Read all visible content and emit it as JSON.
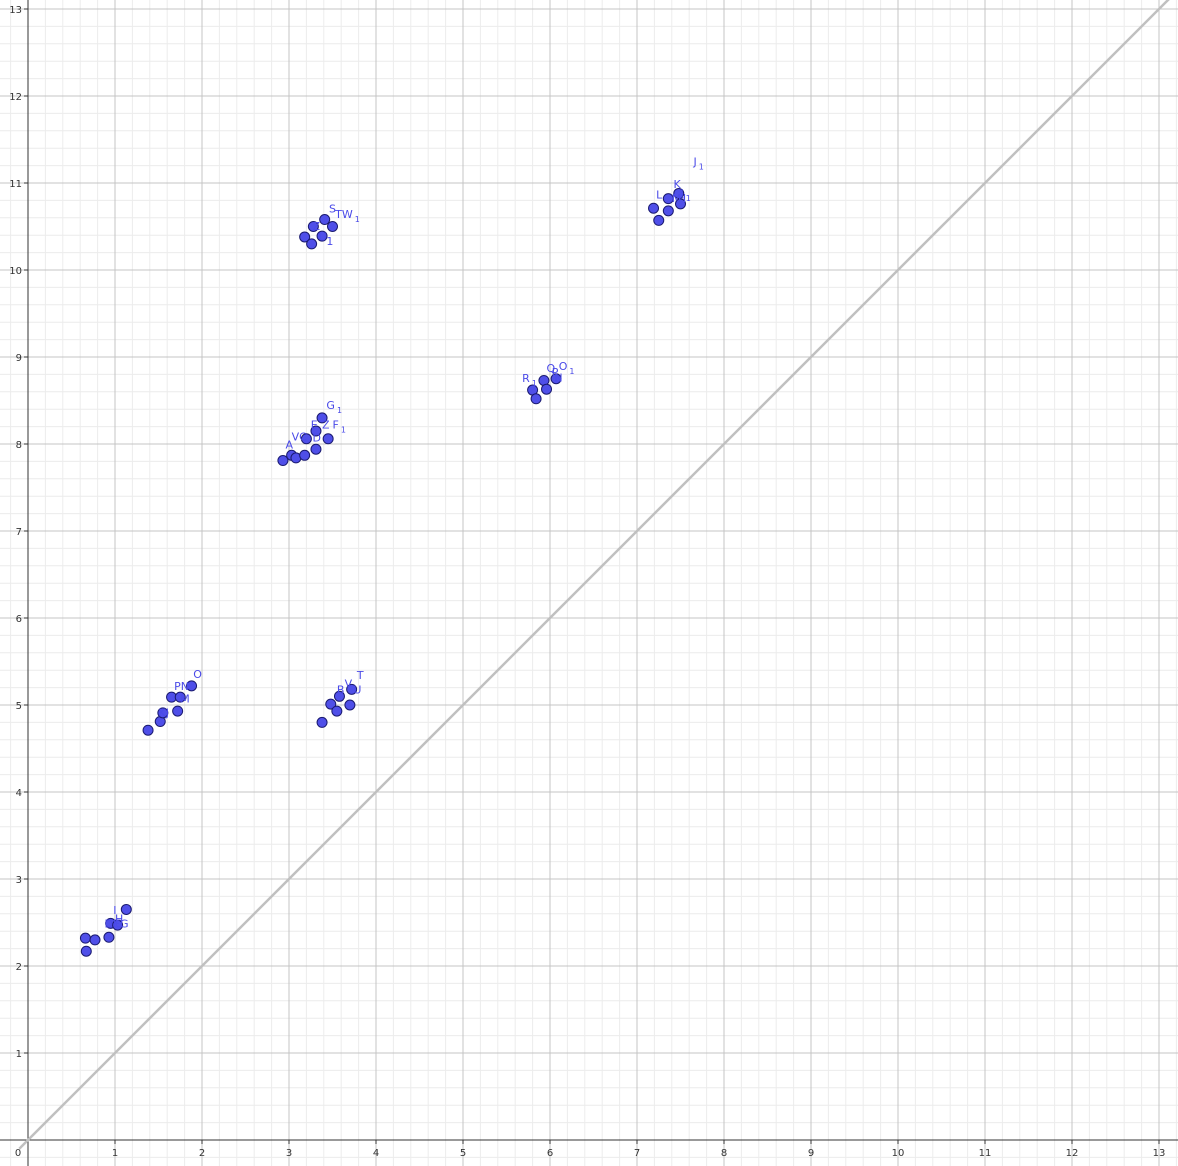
{
  "chart_data": {
    "type": "scatter",
    "title": "",
    "xlabel": "",
    "ylabel": "",
    "xlim": [
      -0.1,
      13.5
    ],
    "ylim": [
      -0.3,
      13.1
    ],
    "x_ticks": [
      "0",
      "1",
      "2",
      "3",
      "4",
      "5",
      "6",
      "7",
      "8",
      "9",
      "10",
      "11",
      "12",
      "13"
    ],
    "y_ticks": [
      "1",
      "2",
      "3",
      "4",
      "5",
      "6",
      "7",
      "8",
      "9",
      "10",
      "11",
      "12",
      "13"
    ],
    "grid": true,
    "reference_line": {
      "from": [
        -0.1,
        -0.1
      ],
      "to": [
        13.2,
        13.2
      ],
      "color": "#c0c0c0"
    },
    "point_color": "#4f4fe8",
    "point_stroke": "#1a1a70",
    "points": [
      {
        "x": 0.66,
        "y": 2.32
      },
      {
        "x": 0.77,
        "y": 2.3
      },
      {
        "x": 0.67,
        "y": 2.17
      },
      {
        "x": 0.93,
        "y": 2.33
      },
      {
        "x": 0.95,
        "y": 2.49
      },
      {
        "x": 1.03,
        "y": 2.47
      },
      {
        "x": 1.13,
        "y": 2.65
      },
      {
        "x": 1.38,
        "y": 4.71
      },
      {
        "x": 1.52,
        "y": 4.81
      },
      {
        "x": 1.55,
        "y": 4.91
      },
      {
        "x": 1.72,
        "y": 4.93
      },
      {
        "x": 1.65,
        "y": 5.09
      },
      {
        "x": 1.75,
        "y": 5.09
      },
      {
        "x": 1.88,
        "y": 5.22
      },
      {
        "x": 3.38,
        "y": 4.8
      },
      {
        "x": 3.48,
        "y": 5.01
      },
      {
        "x": 3.55,
        "y": 4.93
      },
      {
        "x": 3.58,
        "y": 5.1
      },
      {
        "x": 3.7,
        "y": 5.0
      },
      {
        "x": 3.72,
        "y": 5.18
      },
      {
        "x": 2.93,
        "y": 7.81
      },
      {
        "x": 3.03,
        "y": 7.87
      },
      {
        "x": 3.08,
        "y": 7.84
      },
      {
        "x": 3.18,
        "y": 7.87
      },
      {
        "x": 3.31,
        "y": 7.94
      },
      {
        "x": 3.2,
        "y": 8.06
      },
      {
        "x": 3.45,
        "y": 8.06
      },
      {
        "x": 3.31,
        "y": 8.15
      },
      {
        "x": 3.38,
        "y": 8.3
      },
      {
        "x": 3.18,
        "y": 10.38
      },
      {
        "x": 3.26,
        "y": 10.3
      },
      {
        "x": 3.28,
        "y": 10.5
      },
      {
        "x": 3.38,
        "y": 10.39
      },
      {
        "x": 3.41,
        "y": 10.58
      },
      {
        "x": 3.5,
        "y": 10.5
      },
      {
        "x": 5.8,
        "y": 8.62
      },
      {
        "x": 5.84,
        "y": 8.52
      },
      {
        "x": 5.93,
        "y": 8.73
      },
      {
        "x": 5.96,
        "y": 8.63
      },
      {
        "x": 6.07,
        "y": 8.75
      },
      {
        "x": 7.19,
        "y": 10.71
      },
      {
        "x": 7.25,
        "y": 10.57
      },
      {
        "x": 7.36,
        "y": 10.68
      },
      {
        "x": 7.36,
        "y": 10.82
      },
      {
        "x": 7.5,
        "y": 10.76
      },
      {
        "x": 7.48,
        "y": 10.88
      }
    ],
    "labels": [
      {
        "x": 0.98,
        "y": 2.6,
        "text": "I",
        "sub": ""
      },
      {
        "x": 1.0,
        "y": 2.5,
        "text": "H",
        "sub": ""
      },
      {
        "x": 0.88,
        "y": 2.44,
        "text": "DEG",
        "sub": ""
      },
      {
        "x": 1.0,
        "y": 2.44,
        "text": "C",
        "sub": ""
      },
      {
        "x": 1.9,
        "y": 5.31,
        "text": "O",
        "sub": ""
      },
      {
        "x": 1.68,
        "y": 5.17,
        "text": "PN",
        "sub": ""
      },
      {
        "x": 1.75,
        "y": 5.03,
        "text": "M",
        "sub": ""
      },
      {
        "x": 1.5,
        "y": 4.87,
        "text": "KJ",
        "sub": ""
      },
      {
        "x": 3.78,
        "y": 5.3,
        "text": "T",
        "sub": ""
      },
      {
        "x": 3.64,
        "y": 5.2,
        "text": "V",
        "sub": ""
      },
      {
        "x": 3.74,
        "y": 5.13,
        "text": "U",
        "sub": ""
      },
      {
        "x": 3.55,
        "y": 5.13,
        "text": "B",
        "sub": ""
      },
      {
        "x": 3.43,
        "y": 8.4,
        "text": "G",
        "sub": "1"
      },
      {
        "x": 3.5,
        "y": 8.18,
        "text": "F",
        "sub": "1"
      },
      {
        "x": 3.25,
        "y": 8.18,
        "text": "E",
        "sub": ""
      },
      {
        "x": 3.38,
        "y": 8.18,
        "text": "Z",
        "sub": ""
      },
      {
        "x": 3.03,
        "y": 8.04,
        "text": "VC",
        "sub": ""
      },
      {
        "x": 3.27,
        "y": 8.03,
        "text": "D",
        "sub": ""
      },
      {
        "x": 2.96,
        "y": 7.95,
        "text": "A",
        "sub": ""
      },
      {
        "x": 3.46,
        "y": 10.66,
        "text": "S",
        "sub": ""
      },
      {
        "x": 3.53,
        "y": 10.6,
        "text": "TW",
        "sub": "1"
      },
      {
        "x": 3.27,
        "y": 10.46,
        "text": "Z",
        "sub": ""
      },
      {
        "x": 3.34,
        "y": 10.34,
        "text": "U",
        "sub": ""
      },
      {
        "x": 3.43,
        "y": 10.29,
        "text": "1",
        "sub": ""
      },
      {
        "x": 5.68,
        "y": 8.71,
        "text": "R",
        "sub": "1"
      },
      {
        "x": 5.96,
        "y": 8.83,
        "text": "Q",
        "sub": ""
      },
      {
        "x": 6.1,
        "y": 8.85,
        "text": "O",
        "sub": "1"
      },
      {
        "x": 6.02,
        "y": 8.78,
        "text": "P",
        "sub": ""
      },
      {
        "x": 6.05,
        "y": 8.72,
        "text": "N",
        "sub": ""
      },
      {
        "x": 7.65,
        "y": 11.2,
        "text": "J",
        "sub": "1"
      },
      {
        "x": 7.42,
        "y": 10.94,
        "text": "K",
        "sub": ""
      },
      {
        "x": 7.5,
        "y": 10.84,
        "text": "I",
        "sub": "1"
      },
      {
        "x": 7.22,
        "y": 10.82,
        "text": "L",
        "sub": ""
      },
      {
        "x": 7.4,
        "y": 10.78,
        "text": "M",
        "sub": ""
      },
      {
        "x": 7.47,
        "y": 10.78,
        "text": "H",
        "sub": ""
      }
    ]
  }
}
